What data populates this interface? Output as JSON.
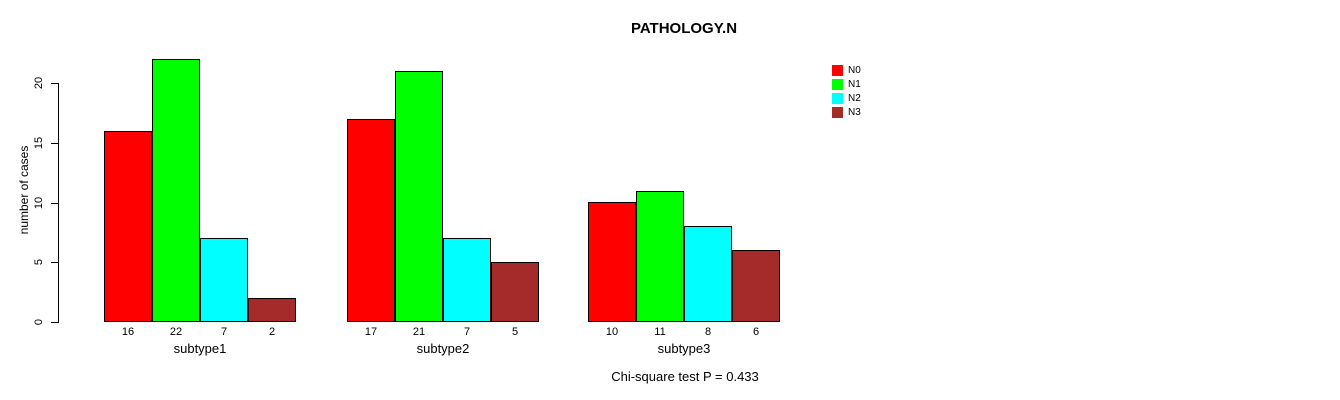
{
  "chart_data": {
    "type": "bar",
    "title": "PATHOLOGY.N",
    "xlabel": "",
    "ylabel": "number of cases",
    "categories": [
      "subtype1",
      "subtype2",
      "subtype3"
    ],
    "series": [
      {
        "name": "N0",
        "color": "#FF0000",
        "values": [
          16,
          17,
          10
        ]
      },
      {
        "name": "N1",
        "color": "#00FF00",
        "values": [
          22,
          21,
          11
        ]
      },
      {
        "name": "N2",
        "color": "#00FFFF",
        "values": [
          7,
          7,
          8
        ]
      },
      {
        "name": "N3",
        "color": "#A52A2A",
        "values": [
          2,
          5,
          6
        ]
      }
    ],
    "ylim": [
      0,
      20
    ],
    "yticks": [
      0,
      5,
      10,
      15,
      20
    ],
    "bar_value_labels_shown": true,
    "grid": false,
    "legend_position": "top-right",
    "annotation": "Chi-square test P = 0.433"
  }
}
